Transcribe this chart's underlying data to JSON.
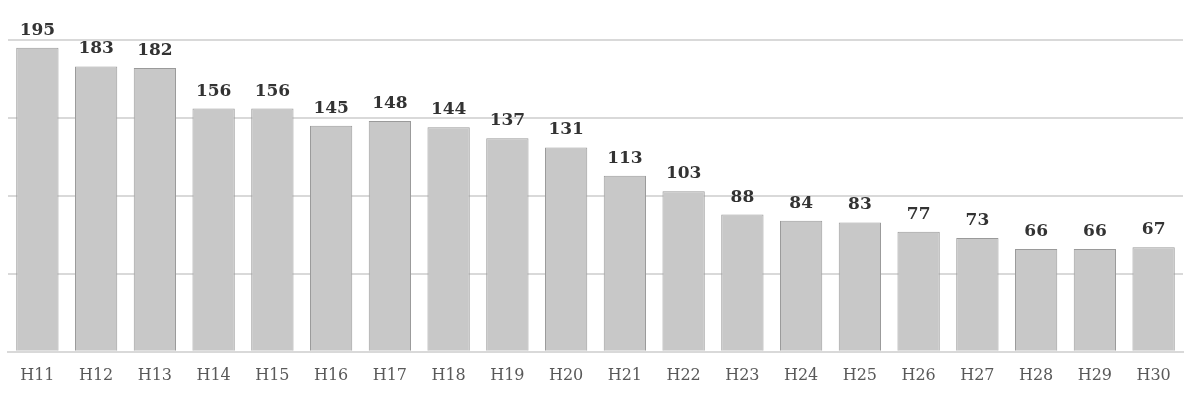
{
  "chart_data": {
    "type": "bar",
    "categories": [
      "H11",
      "H12",
      "H13",
      "H14",
      "H15",
      "H16",
      "H17",
      "H18",
      "H19",
      "H20",
      "H21",
      "H22",
      "H23",
      "H24",
      "H25",
      "H26",
      "H27",
      "H28",
      "H29",
      "H30"
    ],
    "values": [
      195,
      183,
      182,
      156,
      156,
      145,
      148,
      144,
      137,
      131,
      113,
      103,
      88,
      84,
      83,
      77,
      73,
      66,
      66,
      67
    ],
    "color": "#c8c8c8",
    "ylim": [
      0,
      200
    ],
    "yticks": [
      {
        "value": 0,
        "label": null
      },
      {
        "value": 50,
        "label": null
      },
      {
        "value": 100,
        "label": null
      },
      {
        "value": 150,
        "label": null
      },
      {
        "value": 200,
        "label": null
      }
    ],
    "grid": "y",
    "tick_labels": "x",
    "data_labels": true
  }
}
